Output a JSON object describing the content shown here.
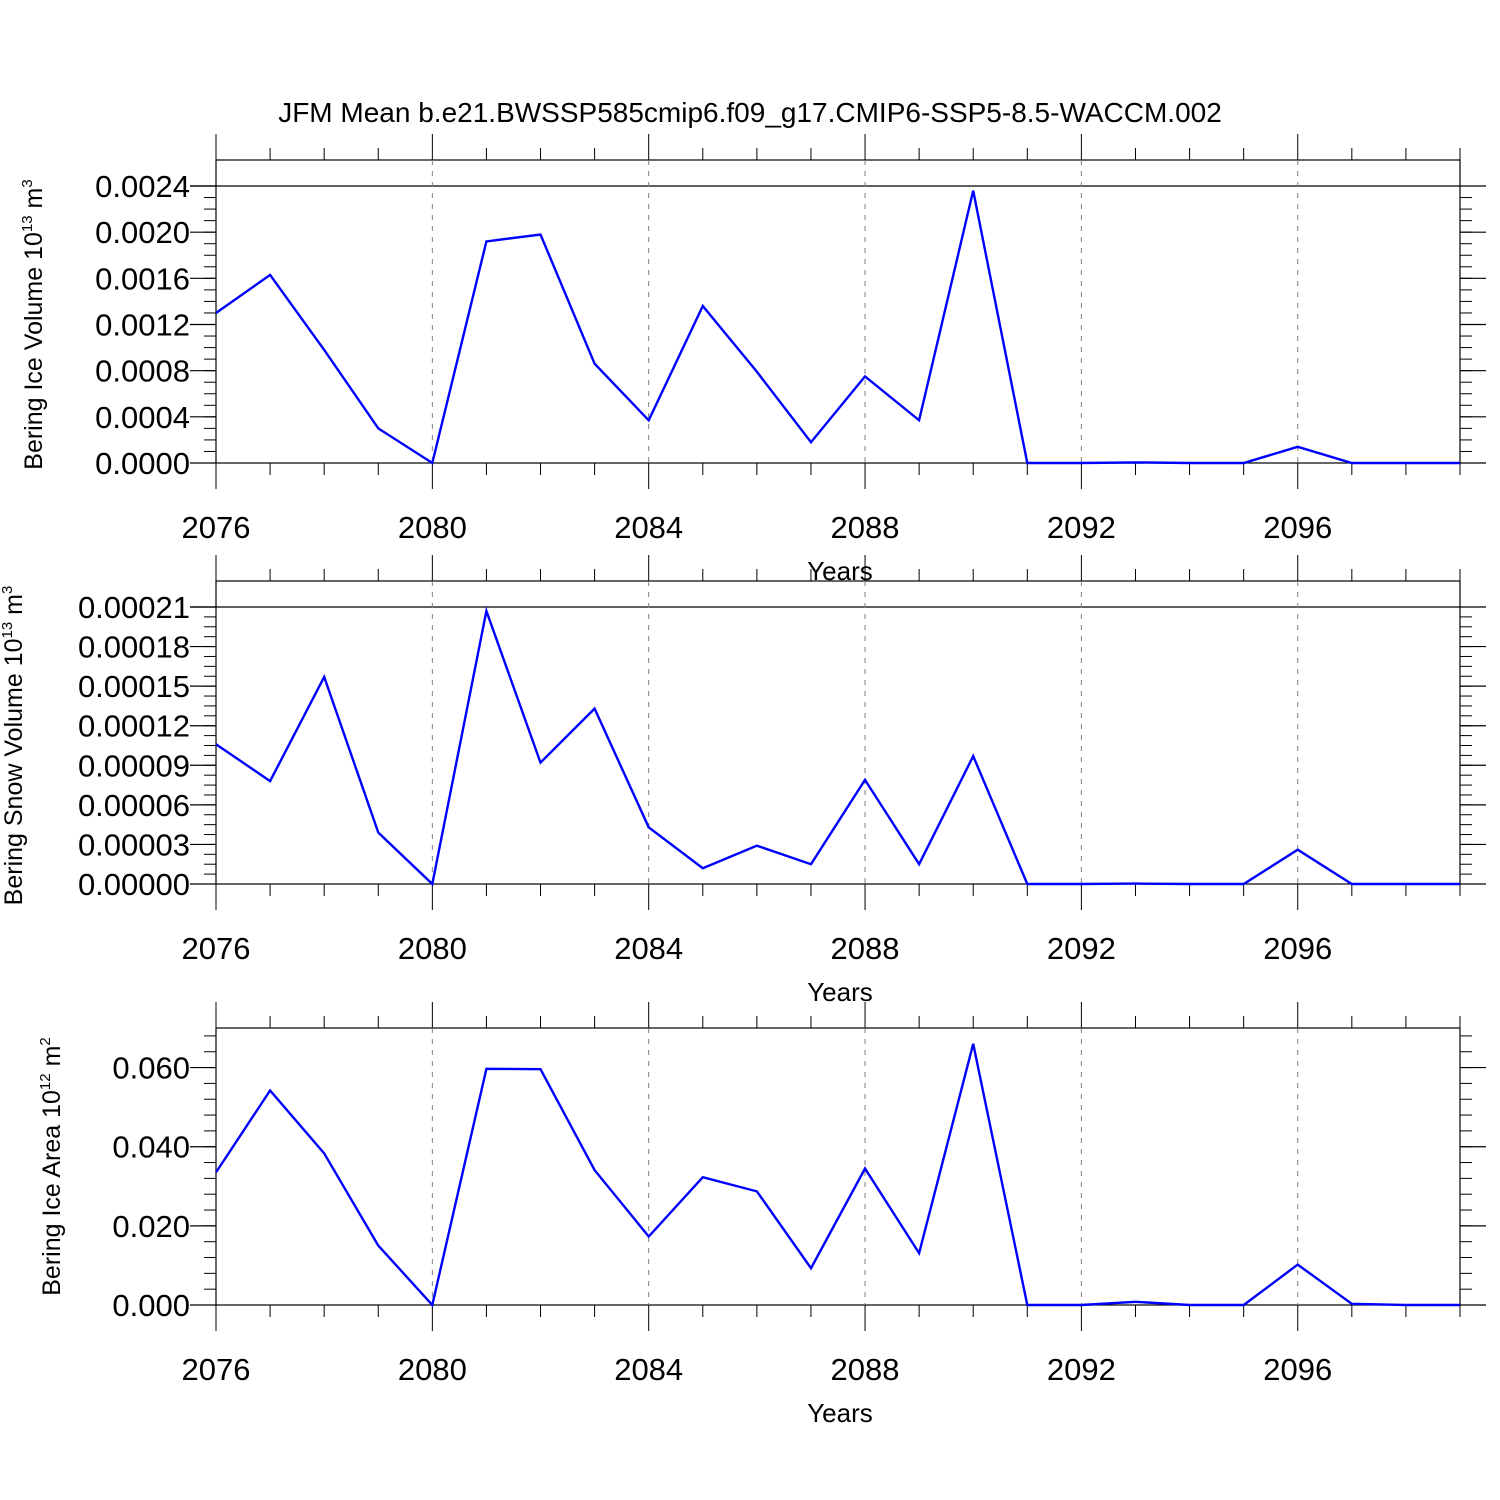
{
  "title": "JFM Mean b.e21.BWSSP585cmip6.f09_g17.CMIP6-SSP5-8.5-WACCM.002",
  "colors": {
    "line": "#0000ff",
    "axis": "#000000",
    "grid": "#808080"
  },
  "chart_data": [
    {
      "type": "line",
      "name": "ice-volume",
      "ylabel": "Bering Ice Volume 10",
      "ylabel_exp": "13",
      "ylabel_unit": " m",
      "ylabel_unit_exp": "3",
      "xlabel": "Years",
      "x": [
        2076,
        2077,
        2078,
        2079,
        2080,
        2081,
        2082,
        2083,
        2084,
        2085,
        2086,
        2087,
        2088,
        2089,
        2090,
        2091,
        2092,
        2093,
        2094,
        2095,
        2096,
        2097,
        2098,
        2099
      ],
      "values": [
        0.0013,
        0.00163,
        0.00098,
        0.0003,
        0.0,
        0.00192,
        0.00198,
        0.00086,
        0.00037,
        0.00136,
        0.00079,
        0.00018,
        0.00075,
        0.00037,
        0.00236,
        0.0,
        0.0,
        5e-06,
        0.0,
        0.0,
        0.00014,
        0.0,
        0.0,
        0.0
      ],
      "xlim": [
        2076,
        2099
      ],
      "ylim": [
        0,
        0.0024
      ],
      "xticks": [
        "2076",
        "2080",
        "2084",
        "2088",
        "2092",
        "2096"
      ],
      "yticks": [
        "0.0000",
        "0.0004",
        "0.0008",
        "0.0012",
        "0.0016",
        "0.0020",
        "0.0024"
      ],
      "ytick_values": [
        0,
        0.0004,
        0.0008,
        0.0012,
        0.0016,
        0.002,
        0.0024
      ],
      "y_minor_step": 0.0001,
      "grid": "vertical-dashed"
    },
    {
      "type": "line",
      "name": "snow-volume",
      "ylabel": "Bering Snow Volume 10",
      "ylabel_exp": "13",
      "ylabel_unit": " m",
      "ylabel_unit_exp": "3",
      "xlabel": "Years",
      "x": [
        2076,
        2077,
        2078,
        2079,
        2080,
        2081,
        2082,
        2083,
        2084,
        2085,
        2086,
        2087,
        2088,
        2089,
        2090,
        2091,
        2092,
        2093,
        2094,
        2095,
        2096,
        2097,
        2098,
        2099
      ],
      "values": [
        0.000106,
        7.8e-05,
        0.000157,
        3.9e-05,
        0.0,
        0.000207,
        9.2e-05,
        0.000133,
        4.3e-05,
        1.2e-05,
        2.9e-05,
        1.5e-05,
        7.9e-05,
        1.5e-05,
        9.7e-05,
        0.0,
        0.0,
        3e-07,
        0.0,
        0.0,
        2.6e-05,
        0.0,
        0.0,
        0.0
      ],
      "xlim": [
        2076,
        2099
      ],
      "ylim": [
        0,
        0.00021
      ],
      "xticks": [
        "2076",
        "2080",
        "2084",
        "2088",
        "2092",
        "2096"
      ],
      "yticks": [
        "0.00000",
        "0.00003",
        "0.00006",
        "0.00009",
        "0.00012",
        "0.00015",
        "0.00018",
        "0.00021"
      ],
      "ytick_values": [
        0,
        3e-05,
        6e-05,
        9e-05,
        0.00012,
        0.00015,
        0.00018,
        0.00021
      ],
      "y_minor_step": 7.5e-06,
      "grid": "vertical-dashed"
    },
    {
      "type": "line",
      "name": "ice-area",
      "ylabel": "Bering Ice Area 10",
      "ylabel_exp": "12",
      "ylabel_unit": " m",
      "ylabel_unit_exp": "2",
      "xlabel": "Years",
      "x": [
        2076,
        2077,
        2078,
        2079,
        2080,
        2081,
        2082,
        2083,
        2084,
        2085,
        2086,
        2087,
        2088,
        2089,
        2090,
        2091,
        2092,
        2093,
        2094,
        2095,
        2096,
        2097,
        2098,
        2099
      ],
      "values": [
        0.0335,
        0.0542,
        0.0383,
        0.015,
        0.0,
        0.0597,
        0.0596,
        0.0341,
        0.0173,
        0.0323,
        0.0287,
        0.0093,
        0.0345,
        0.0131,
        0.066,
        0.0,
        0.0,
        0.0008,
        0.0,
        0.0,
        0.0102,
        0.0003,
        0.0,
        0.0
      ],
      "xlim": [
        2076,
        2099
      ],
      "ylim": [
        0,
        0.07
      ],
      "xticks": [
        "2076",
        "2080",
        "2084",
        "2088",
        "2092",
        "2096"
      ],
      "yticks": [
        "0.000",
        "0.020",
        "0.040",
        "0.060"
      ],
      "ytick_values": [
        0,
        0.02,
        0.04,
        0.06
      ],
      "y_minor_step": 0.004,
      "grid": "vertical-dashed"
    }
  ]
}
